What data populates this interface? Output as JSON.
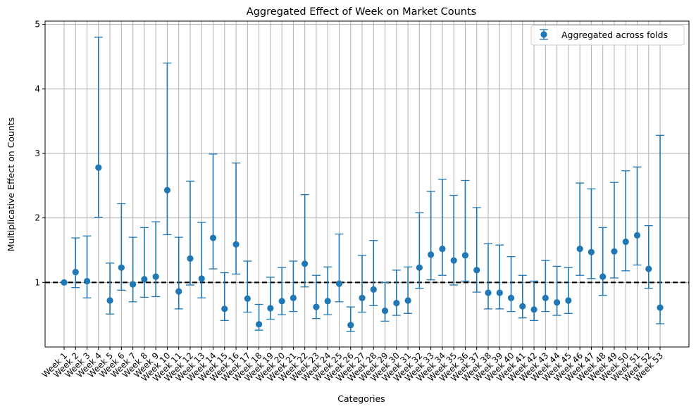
{
  "chart_data": {
    "type": "scatter",
    "title": "Aggregated Effect of Week on Market Counts",
    "xlabel": "Categories",
    "ylabel": "Multiplicative Effect on Counts",
    "ylim": [
      0.0,
      5.05
    ],
    "yticks": [
      1,
      2,
      3,
      4,
      5
    ],
    "grid": true,
    "legend_position": "top-right",
    "reference_line": {
      "y": 1,
      "style": "dashed",
      "color": "#000000"
    },
    "series_color": "#1f77b4",
    "categories": [
      "Week 1",
      "Week 2",
      "Week 3",
      "Week 4",
      "Week 5",
      "Week 6",
      "Week 7",
      "Week 8",
      "Week 9",
      "Week 10",
      "Week 11",
      "Week 12",
      "Week 13",
      "Week 14",
      "Week 15",
      "Week 16",
      "Week 17",
      "Week 18",
      "Week 19",
      "Week 20",
      "Week 21",
      "Week 22",
      "Week 23",
      "Week 24",
      "Week 25",
      "Week 26",
      "Week 27",
      "Week 28",
      "Week 29",
      "Week 30",
      "Week 31",
      "Week 32",
      "Week 33",
      "Week 34",
      "Week 35",
      "Week 36",
      "Week 37",
      "Week 38",
      "Week 39",
      "Week 40",
      "Week 41",
      "Week 42",
      "Week 43",
      "Week 44",
      "Week 45",
      "Week 46",
      "Week 47",
      "Week 48",
      "Week 49",
      "Week 50",
      "Week 51",
      "Week 52",
      "Week 53"
    ],
    "series": [
      {
        "name": "Aggregated across folds",
        "values": [
          1.0,
          1.16,
          1.02,
          2.78,
          0.72,
          1.23,
          0.97,
          1.05,
          1.09,
          2.43,
          0.86,
          1.37,
          1.06,
          1.69,
          0.59,
          1.59,
          0.75,
          0.35,
          0.6,
          0.71,
          0.76,
          1.29,
          0.62,
          0.71,
          0.98,
          0.34,
          0.76,
          0.89,
          0.56,
          0.68,
          0.72,
          1.23,
          1.43,
          1.52,
          1.34,
          1.42,
          1.19,
          0.84,
          0.84,
          0.76,
          0.63,
          0.58,
          0.76,
          0.69,
          0.72,
          1.52,
          1.47,
          1.09,
          1.48,
          1.63,
          1.73,
          1.21,
          0.61
        ],
        "lower": [
          1.0,
          0.92,
          0.76,
          2.01,
          0.51,
          0.88,
          0.7,
          0.77,
          0.78,
          1.74,
          0.59,
          0.96,
          0.76,
          1.21,
          0.41,
          1.13,
          0.54,
          0.26,
          0.43,
          0.5,
          0.55,
          0.93,
          0.44,
          0.5,
          0.7,
          0.24,
          0.54,
          0.64,
          0.4,
          0.49,
          0.52,
          0.91,
          1.04,
          1.11,
          0.96,
          1.02,
          0.85,
          0.59,
          0.59,
          0.55,
          0.45,
          0.41,
          0.55,
          0.49,
          0.52,
          1.11,
          1.06,
          0.8,
          1.07,
          1.18,
          1.27,
          0.91,
          0.36
        ],
        "upper": [
          1.0,
          1.69,
          1.72,
          4.8,
          1.3,
          2.22,
          1.7,
          1.85,
          1.94,
          4.4,
          1.7,
          2.57,
          1.93,
          2.99,
          1.15,
          2.85,
          1.33,
          0.66,
          1.08,
          1.23,
          1.33,
          2.36,
          1.11,
          1.24,
          1.75,
          0.62,
          1.42,
          1.65,
          1.0,
          1.19,
          1.24,
          2.08,
          2.41,
          2.6,
          2.35,
          2.58,
          2.16,
          1.6,
          1.58,
          1.4,
          1.11,
          1.02,
          1.34,
          1.25,
          1.23,
          2.54,
          2.45,
          1.85,
          2.55,
          2.73,
          2.79,
          1.88,
          3.28
        ]
      }
    ]
  }
}
